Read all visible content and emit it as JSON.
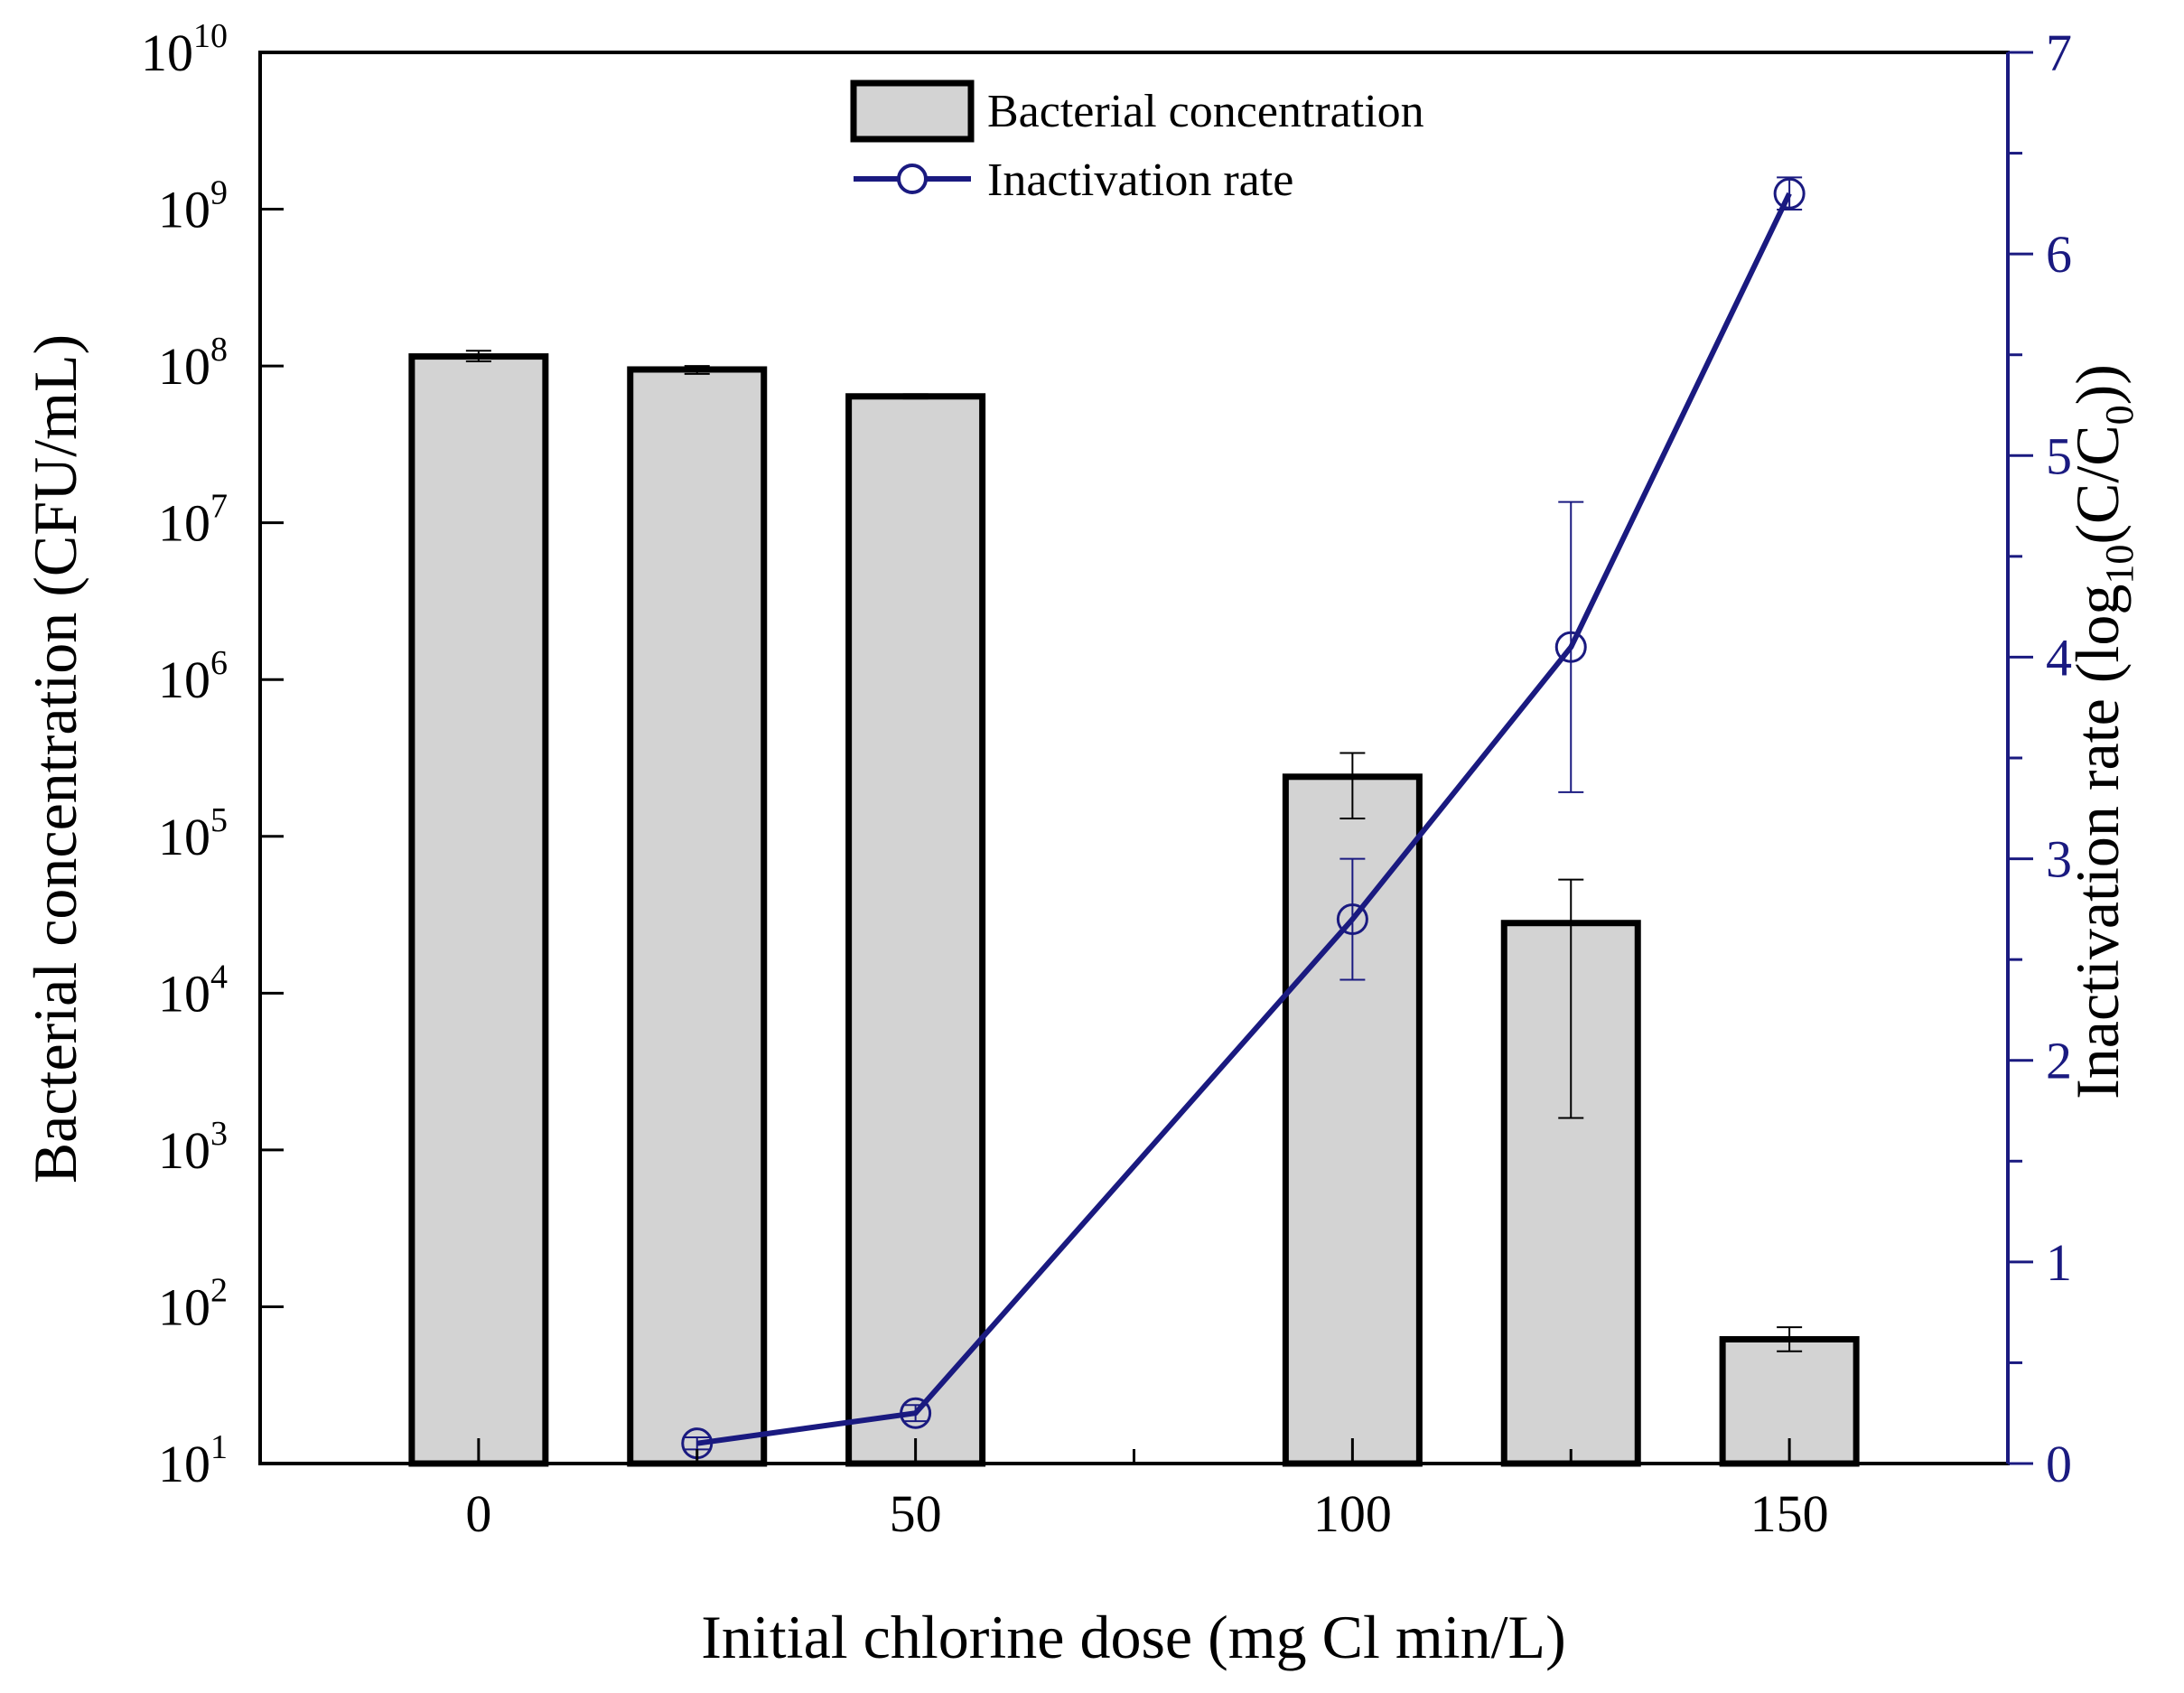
{
  "chart_data": {
    "type": "bar+line",
    "x_title": "Initial chlorine dose (mg Cl min/L)",
    "x_ticks": [
      "0",
      "50",
      "100",
      "150"
    ],
    "x_range": [
      -25,
      175
    ],
    "left_axis": {
      "title": "Bacterial concentration (CFU/mL)",
      "scale": "log",
      "range_exp": [
        1,
        10
      ],
      "ticks": [
        {
          "base": "10",
          "exp": "1"
        },
        {
          "base": "10",
          "exp": "2"
        },
        {
          "base": "10",
          "exp": "3"
        },
        {
          "base": "10",
          "exp": "4"
        },
        {
          "base": "10",
          "exp": "5"
        },
        {
          "base": "10",
          "exp": "6"
        },
        {
          "base": "10",
          "exp": "7"
        },
        {
          "base": "10",
          "exp": "8"
        },
        {
          "base": "10",
          "exp": "9"
        },
        {
          "base": "10",
          "exp": "10"
        }
      ]
    },
    "right_axis": {
      "title_prefix": "Inactivation rate (log",
      "title_sub1": "10",
      "title_mid": "(C/C",
      "title_sub2": "0",
      "title_suffix": "))",
      "range": [
        0,
        7
      ],
      "ticks": [
        "0",
        "1",
        "2",
        "3",
        "4",
        "5",
        "6",
        "7"
      ],
      "color": "#1a1a80"
    },
    "series": [
      {
        "name": "Bacterial concentration",
        "type": "bar",
        "axis": "left",
        "color": "#d3d3d3",
        "points": [
          {
            "x": 0,
            "value": 115000000,
            "err_low": 107000000,
            "err_high": 125000000
          },
          {
            "x": 25,
            "value": 95000000,
            "err_low": 89000000,
            "err_high": 100000000
          },
          {
            "x": 50,
            "value": 64000000,
            "err_low": 62000000,
            "err_high": 66000000
          },
          {
            "x": 100,
            "value": 240000,
            "err_low": 130000,
            "err_high": 340000
          },
          {
            "x": 125,
            "value": 28000,
            "err_low": 1600,
            "err_high": 53000
          },
          {
            "x": 150,
            "value": 62,
            "err_low": 52,
            "err_high": 74
          }
        ]
      },
      {
        "name": "Inactivation rate",
        "type": "line",
        "axis": "right",
        "color": "#1a1a80",
        "marker": "open-circle",
        "points": [
          {
            "x": 25,
            "value": 0.1,
            "err": 0.03
          },
          {
            "x": 50,
            "value": 0.25,
            "err": 0.04
          },
          {
            "x": 100,
            "value": 2.7,
            "err": 0.3
          },
          {
            "x": 125,
            "value": 4.05,
            "err": 0.72
          },
          {
            "x": 150,
            "value": 6.3,
            "err": 0.08
          }
        ]
      }
    ],
    "legend": {
      "position": "top-center",
      "entries": [
        "Bacterial concentration",
        "Inactivation rate"
      ]
    }
  }
}
